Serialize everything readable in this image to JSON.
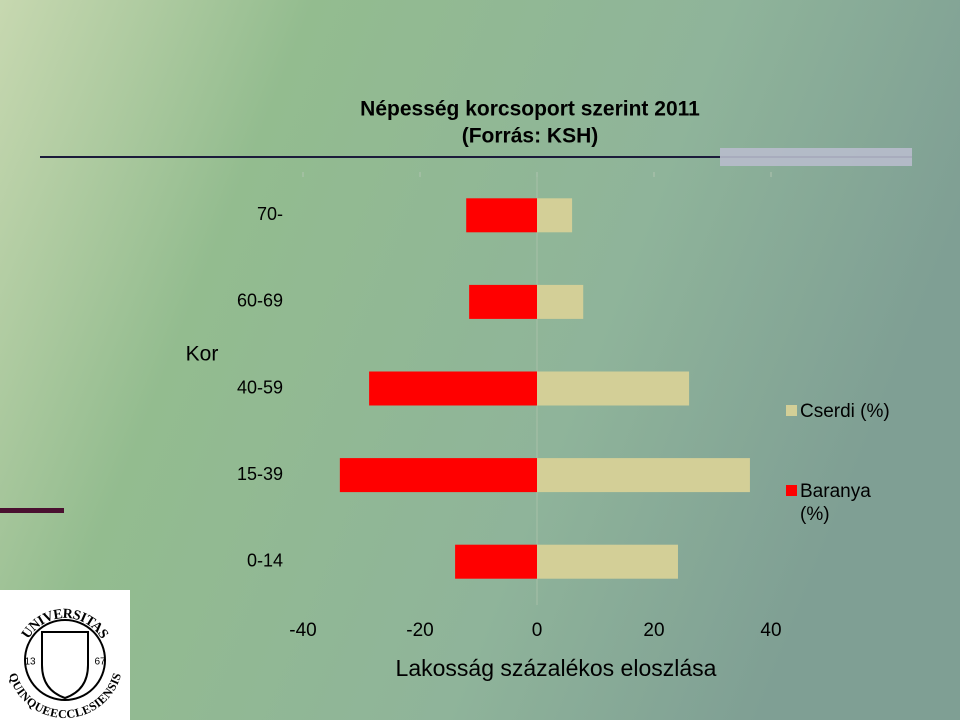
{
  "chart_data": {
    "type": "hbar",
    "title": "Népesség korcsoport szerint 2011",
    "subtitle": "(Forrás: KSH)",
    "x_label": "Lakosság százalékos eloszlása",
    "y_label": "Kor",
    "categories": [
      "0-14",
      "15-39",
      "40-59",
      "60-69",
      "70-"
    ],
    "series": [
      {
        "name": "Cserdi (%)",
        "color": "#d3cf97",
        "values": [
          24.1,
          36.4,
          26.0,
          7.9,
          6.0
        ]
      },
      {
        "name": "Baranya (%)",
        "color": "#ff0000",
        "values": [
          -14.0,
          -33.7,
          -28.7,
          -11.6,
          -12.1
        ]
      }
    ],
    "xlim": [
      -40,
      40
    ],
    "xticks": [
      -40,
      -20,
      0,
      20,
      40
    ],
    "grid": false,
    "legend": "right"
  },
  "logo": {
    "top": "UNIVERSITAS",
    "bottom": "QUINQUEECCLESIENSIS",
    "left_year": "13",
    "right_year": "67"
  }
}
